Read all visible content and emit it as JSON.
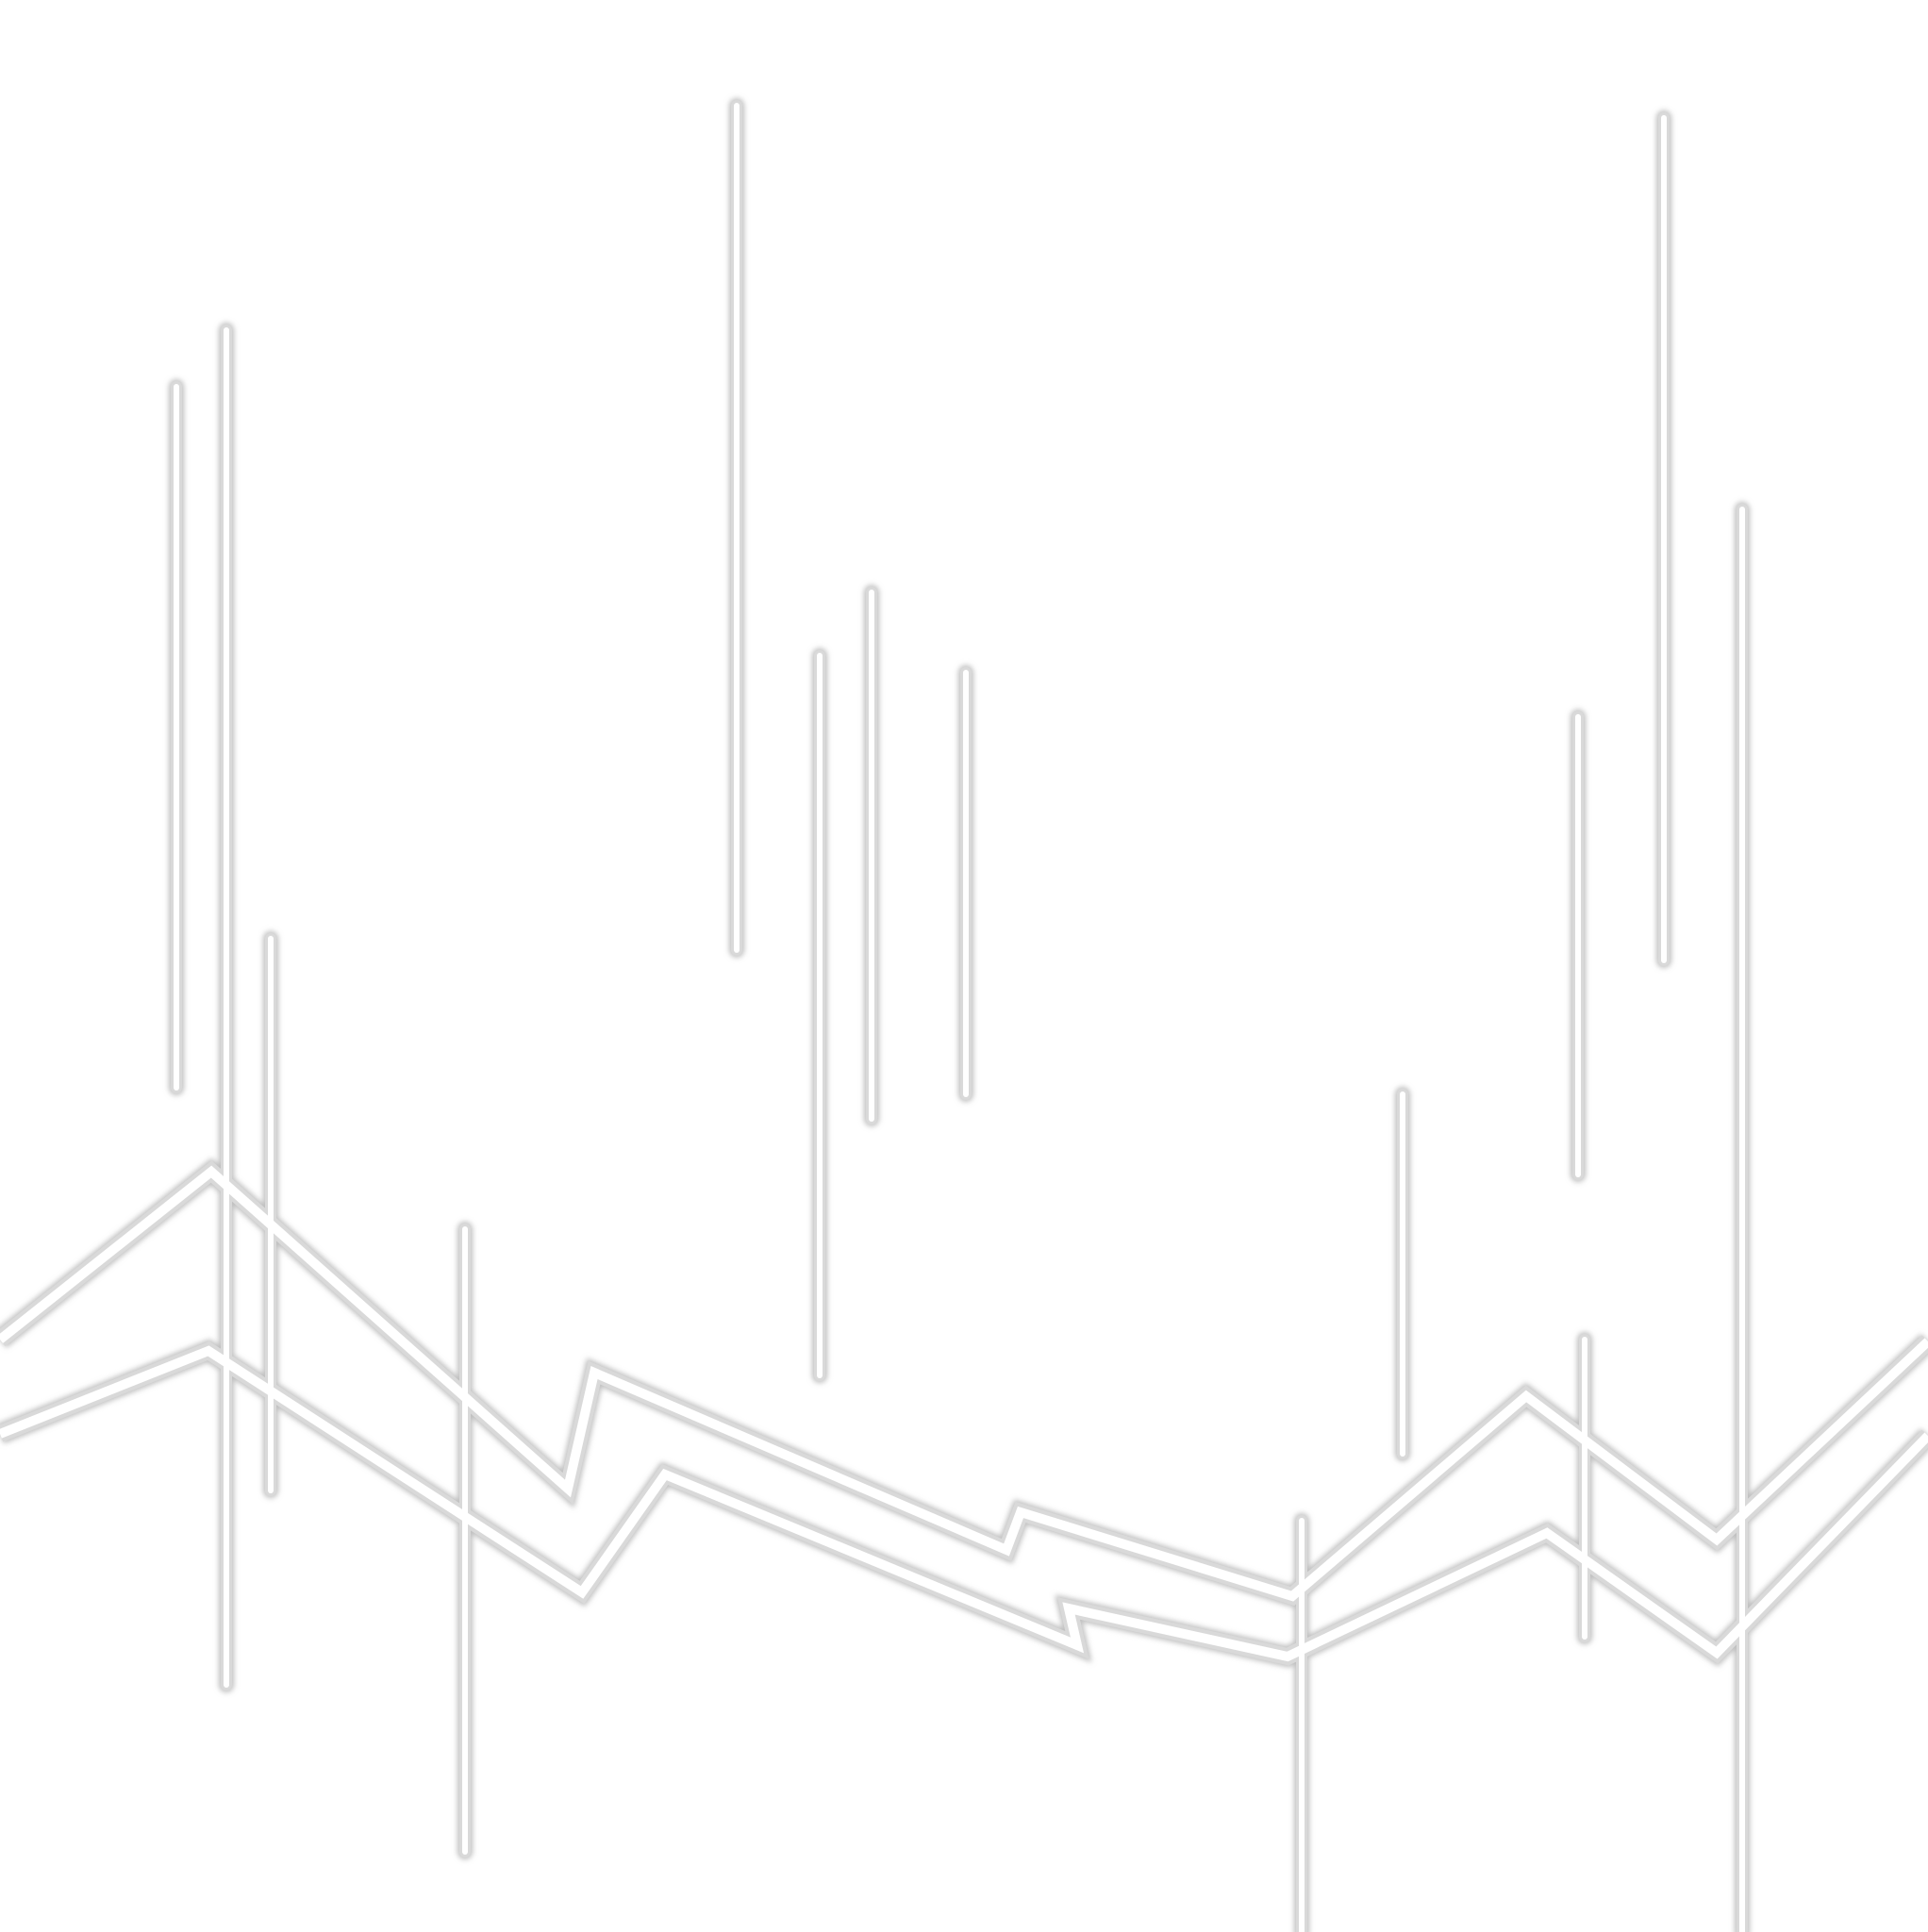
{
  "page": {
    "background_color": "#ffffff"
  },
  "style": {
    "outline_color": "#d9d9d9",
    "core_color": "#ffffff",
    "glow_color": "#bfbfbf"
  }
}
